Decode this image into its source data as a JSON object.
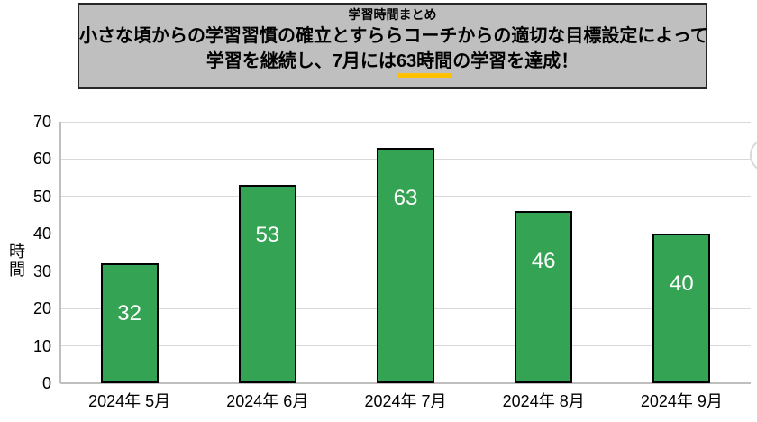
{
  "header": {
    "title": "学習時間まとめ",
    "line1": "小さな頃からの学習習慣の確立とすららコーチからの適切な目標設定によって",
    "line2_prefix": "学習を継続し、7月には",
    "line2_highlight": "63時間",
    "line2_suffix": "の学習を達成！",
    "highlight_color": "#FFC000",
    "background_color": "#BFBFBF",
    "border_color": "#262626",
    "text_color": "#000000"
  },
  "chart_data": {
    "type": "bar",
    "title": "",
    "categories": [
      "2024年 5月",
      "2024年 6月",
      "2024年 7月",
      "2024年 8月",
      "2024年 9月"
    ],
    "values": [
      32,
      53,
      63,
      46,
      40
    ],
    "xlabel": "",
    "ylabel": "時間",
    "ylim": [
      0,
      70
    ],
    "yticks": [
      0,
      10,
      20,
      30,
      40,
      50,
      60,
      70
    ],
    "grid": true,
    "legend": false,
    "value_label_position": "inside",
    "bar_color": "#34A353",
    "bar_border_color": "#000000",
    "value_label_color": "#FFFFFF",
    "gridline_color": "#D9D9D9",
    "axis_color": "#BFBFBF",
    "tick_label_color": "#000000"
  }
}
